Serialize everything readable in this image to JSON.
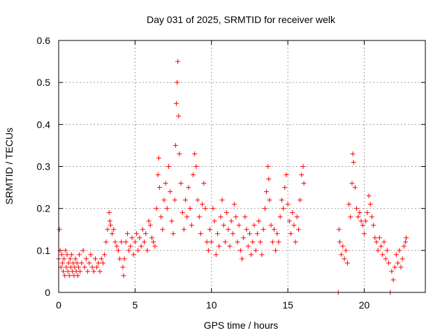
{
  "chart_data": {
    "type": "scatter",
    "title": "Day 031 of 2025, SRMTID for receiver welk",
    "xlabel": "GPS time / hours",
    "ylabel": "SRMTID / TECUs",
    "xlim": [
      0,
      24
    ],
    "ylim": [
      0,
      0.6
    ],
    "xticks": [
      0,
      5,
      10,
      15,
      20
    ],
    "xtick_labels": [
      "0",
      "5",
      "10",
      "15",
      "20"
    ],
    "yticks": [
      0,
      0.1,
      0.2,
      0.3,
      0.4,
      0.5,
      0.6
    ],
    "ytick_labels": [
      "0",
      "0.1",
      "0.2",
      "0.3",
      "0.4",
      "0.5",
      "0.6"
    ],
    "grid": true,
    "marker": "+",
    "color": "#ff0000",
    "series": [
      {
        "name": "SRMTID",
        "points": [
          [
            0.0,
            0.08
          ],
          [
            0.05,
            0.15
          ],
          [
            0.1,
            0.1
          ],
          [
            0.15,
            0.06
          ],
          [
            0.2,
            0.09
          ],
          [
            0.25,
            0.07
          ],
          [
            0.3,
            0.05
          ],
          [
            0.35,
            0.08
          ],
          [
            0.4,
            0.04
          ],
          [
            0.45,
            0.1
          ],
          [
            0.5,
            0.06
          ],
          [
            0.55,
            0.09
          ],
          [
            0.6,
            0.05
          ],
          [
            0.65,
            0.07
          ],
          [
            0.7,
            0.04
          ],
          [
            0.75,
            0.08
          ],
          [
            0.8,
            0.06
          ],
          [
            0.85,
            0.09
          ],
          [
            0.9,
            0.05
          ],
          [
            0.95,
            0.07
          ],
          [
            1.0,
            0.04
          ],
          [
            1.05,
            0.06
          ],
          [
            1.1,
            0.08
          ],
          [
            1.15,
            0.05
          ],
          [
            1.2,
            0.07
          ],
          [
            1.25,
            0.04
          ],
          [
            1.3,
            0.06
          ],
          [
            1.35,
            0.09
          ],
          [
            1.4,
            0.05
          ],
          [
            1.5,
            0.07
          ],
          [
            1.6,
            0.1
          ],
          [
            1.7,
            0.06
          ],
          [
            1.8,
            0.08
          ],
          [
            1.9,
            0.05
          ],
          [
            2.0,
            0.07
          ],
          [
            2.1,
            0.09
          ],
          [
            2.2,
            0.06
          ],
          [
            2.3,
            0.05
          ],
          [
            2.4,
            0.08
          ],
          [
            2.5,
            0.06
          ],
          [
            2.6,
            0.07
          ],
          [
            2.7,
            0.05
          ],
          [
            2.8,
            0.08
          ],
          [
            2.9,
            0.07
          ],
          [
            3.0,
            0.09
          ],
          [
            3.1,
            0.12
          ],
          [
            3.2,
            0.15
          ],
          [
            3.3,
            0.19
          ],
          [
            3.35,
            0.17
          ],
          [
            3.4,
            0.16
          ],
          [
            3.5,
            0.14
          ],
          [
            3.6,
            0.15
          ],
          [
            3.7,
            0.12
          ],
          [
            3.8,
            0.11
          ],
          [
            3.9,
            0.1
          ],
          [
            4.0,
            0.08
          ],
          [
            4.1,
            0.12
          ],
          [
            4.2,
            0.06
          ],
          [
            4.25,
            0.04
          ],
          [
            4.3,
            0.08
          ],
          [
            4.4,
            0.12
          ],
          [
            4.5,
            0.14
          ],
          [
            4.6,
            0.1
          ],
          [
            4.7,
            0.11
          ],
          [
            4.8,
            0.13
          ],
          [
            4.9,
            0.09
          ],
          [
            5.0,
            0.12
          ],
          [
            5.1,
            0.14
          ],
          [
            5.2,
            0.1
          ],
          [
            5.3,
            0.13
          ],
          [
            5.4,
            0.11
          ],
          [
            5.5,
            0.15
          ],
          [
            5.6,
            0.12
          ],
          [
            5.7,
            0.14
          ],
          [
            5.8,
            0.1
          ],
          [
            5.9,
            0.17
          ],
          [
            6.0,
            0.16
          ],
          [
            6.1,
            0.13
          ],
          [
            6.2,
            0.12
          ],
          [
            6.3,
            0.11
          ],
          [
            6.4,
            0.2
          ],
          [
            6.5,
            0.28
          ],
          [
            6.55,
            0.32
          ],
          [
            6.6,
            0.25
          ],
          [
            6.7,
            0.18
          ],
          [
            6.8,
            0.15
          ],
          [
            6.9,
            0.22
          ],
          [
            7.0,
            0.26
          ],
          [
            7.1,
            0.2
          ],
          [
            7.2,
            0.3
          ],
          [
            7.3,
            0.24
          ],
          [
            7.4,
            0.17
          ],
          [
            7.5,
            0.14
          ],
          [
            7.6,
            0.22
          ],
          [
            7.65,
            0.35
          ],
          [
            7.7,
            0.45
          ],
          [
            7.75,
            0.5
          ],
          [
            7.8,
            0.55
          ],
          [
            7.85,
            0.42
          ],
          [
            7.9,
            0.33
          ],
          [
            8.0,
            0.26
          ],
          [
            8.1,
            0.19
          ],
          [
            8.2,
            0.15
          ],
          [
            8.3,
            0.22
          ],
          [
            8.4,
            0.18
          ],
          [
            8.5,
            0.25
          ],
          [
            8.6,
            0.2
          ],
          [
            8.7,
            0.16
          ],
          [
            8.8,
            0.28
          ],
          [
            8.9,
            0.33
          ],
          [
            9.0,
            0.3
          ],
          [
            9.1,
            0.22
          ],
          [
            9.2,
            0.18
          ],
          [
            9.3,
            0.14
          ],
          [
            9.4,
            0.21
          ],
          [
            9.5,
            0.26
          ],
          [
            9.6,
            0.2
          ],
          [
            9.7,
            0.12
          ],
          [
            9.8,
            0.1
          ],
          [
            9.9,
            0.15
          ],
          [
            10.0,
            0.12
          ],
          [
            10.1,
            0.2
          ],
          [
            10.2,
            0.17
          ],
          [
            10.3,
            0.09
          ],
          [
            10.4,
            0.14
          ],
          [
            10.5,
            0.11
          ],
          [
            10.6,
            0.18
          ],
          [
            10.7,
            0.22
          ],
          [
            10.8,
            0.16
          ],
          [
            10.9,
            0.12
          ],
          [
            11.0,
            0.19
          ],
          [
            11.1,
            0.15
          ],
          [
            11.2,
            0.11
          ],
          [
            11.3,
            0.17
          ],
          [
            11.4,
            0.14
          ],
          [
            11.5,
            0.21
          ],
          [
            11.6,
            0.18
          ],
          [
            11.7,
            0.12
          ],
          [
            11.8,
            0.16
          ],
          [
            11.9,
            0.1
          ],
          [
            12.0,
            0.08
          ],
          [
            12.1,
            0.13
          ],
          [
            12.2,
            0.18
          ],
          [
            12.3,
            0.15
          ],
          [
            12.4,
            0.11
          ],
          [
            12.5,
            0.14
          ],
          [
            12.6,
            0.09
          ],
          [
            12.7,
            0.12
          ],
          [
            12.8,
            0.16
          ],
          [
            12.9,
            0.1
          ],
          [
            13.0,
            0.14
          ],
          [
            13.1,
            0.17
          ],
          [
            13.2,
            0.12
          ],
          [
            13.3,
            0.09
          ],
          [
            13.4,
            0.15
          ],
          [
            13.5,
            0.2
          ],
          [
            13.6,
            0.24
          ],
          [
            13.7,
            0.3
          ],
          [
            13.75,
            0.27
          ],
          [
            13.8,
            0.22
          ],
          [
            13.9,
            0.16
          ],
          [
            14.0,
            0.12
          ],
          [
            14.1,
            0.15
          ],
          [
            14.2,
            0.1
          ],
          [
            14.3,
            0.14
          ],
          [
            14.4,
            0.12
          ],
          [
            14.5,
            0.18
          ],
          [
            14.6,
            0.22
          ],
          [
            14.7,
            0.2
          ],
          [
            14.8,
            0.25
          ],
          [
            14.9,
            0.28
          ],
          [
            15.0,
            0.21
          ],
          [
            15.1,
            0.17
          ],
          [
            15.2,
            0.14
          ],
          [
            15.3,
            0.19
          ],
          [
            15.4,
            0.16
          ],
          [
            15.5,
            0.12
          ],
          [
            15.6,
            0.18
          ],
          [
            15.7,
            0.15
          ],
          [
            15.8,
            0.22
          ],
          [
            15.9,
            0.28
          ],
          [
            16.0,
            0.3
          ],
          [
            16.05,
            0.26
          ],
          [
            18.3,
            0.0
          ],
          [
            18.35,
            0.15
          ],
          [
            18.4,
            0.12
          ],
          [
            18.5,
            0.09
          ],
          [
            18.6,
            0.11
          ],
          [
            18.7,
            0.08
          ],
          [
            18.8,
            0.1
          ],
          [
            18.9,
            0.07
          ],
          [
            19.0,
            0.21
          ],
          [
            19.1,
            0.18
          ],
          [
            19.2,
            0.26
          ],
          [
            19.25,
            0.33
          ],
          [
            19.3,
            0.31
          ],
          [
            19.4,
            0.25
          ],
          [
            19.5,
            0.2
          ],
          [
            19.6,
            0.18
          ],
          [
            19.7,
            0.19
          ],
          [
            19.8,
            0.17
          ],
          [
            19.9,
            0.16
          ],
          [
            20.0,
            0.14
          ],
          [
            20.1,
            0.17
          ],
          [
            20.2,
            0.19
          ],
          [
            20.3,
            0.23
          ],
          [
            20.4,
            0.21
          ],
          [
            20.5,
            0.18
          ],
          [
            20.6,
            0.16
          ],
          [
            20.7,
            0.13
          ],
          [
            20.8,
            0.12
          ],
          [
            20.9,
            0.1
          ],
          [
            21.0,
            0.13
          ],
          [
            21.1,
            0.11
          ],
          [
            21.2,
            0.09
          ],
          [
            21.3,
            0.12
          ],
          [
            21.4,
            0.08
          ],
          [
            21.5,
            0.1
          ],
          [
            21.6,
            0.07
          ],
          [
            21.7,
            0.0
          ],
          [
            21.8,
            0.05
          ],
          [
            21.9,
            0.03
          ],
          [
            22.0,
            0.06
          ],
          [
            22.1,
            0.09
          ],
          [
            22.2,
            0.07
          ],
          [
            22.3,
            0.1
          ],
          [
            22.4,
            0.06
          ],
          [
            22.5,
            0.08
          ],
          [
            22.6,
            0.11
          ],
          [
            22.7,
            0.12
          ],
          [
            22.75,
            0.13
          ]
        ]
      }
    ]
  }
}
